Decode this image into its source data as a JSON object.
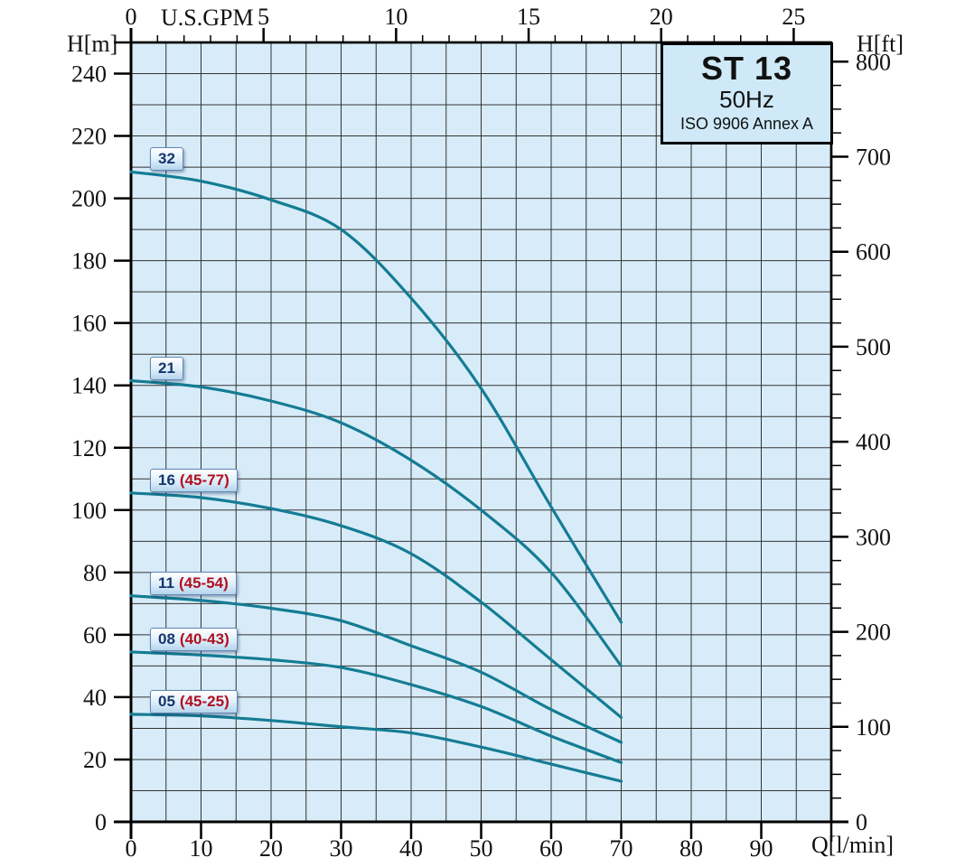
{
  "title_box": {
    "model": "ST 13",
    "frequency": "50Hz",
    "standard": "ISO 9906 Annex A"
  },
  "axis_labels": {
    "left": "H[m]",
    "right": "H[ft]",
    "top": "U.S.GPM",
    "bottom": "Q[l/min]"
  },
  "colors": {
    "plot_bg": "#d7ecf8",
    "curve": "#147c94",
    "grid": "#333333",
    "axis": "#000000",
    "title_box_bg": "#cfe9f8",
    "chip_number": "#16356b",
    "chip_range": "#b01020"
  },
  "chart_data": {
    "type": "line",
    "title": "ST 13 50Hz pump performance curves (head vs flow), ISO 9906 Annex A",
    "xlabel": "Q[l/min]",
    "x2label": "U.S.GPM",
    "ylabel": "H[m]",
    "y2label": "H[ft]",
    "xlim": [
      0,
      100
    ],
    "ylim": [
      0,
      250
    ],
    "x_ticks": [
      0,
      10,
      20,
      30,
      40,
      50,
      60,
      70,
      80,
      90
    ],
    "x2_ticks": [
      0,
      5,
      10,
      15,
      20,
      25
    ],
    "y_ticks": [
      0,
      20,
      40,
      60,
      80,
      100,
      120,
      140,
      160,
      180,
      200,
      220,
      240
    ],
    "y2_ticks": [
      0,
      100,
      200,
      300,
      400,
      500,
      600,
      700,
      800
    ],
    "x2_minor_step": 1,
    "y2_minor_step": 25,
    "grid": {
      "on": true,
      "x_step": 5,
      "y_step": 10
    },
    "legend_position": "on-curve-chips",
    "x": [
      0,
      10,
      20,
      30,
      40,
      50,
      60,
      70
    ],
    "series": [
      {
        "name": "32",
        "range": "",
        "values": [
          208.5,
          205.5,
          199.5,
          190.0,
          168.0,
          139.0,
          101.0,
          64.0
        ]
      },
      {
        "name": "21",
        "range": "",
        "values": [
          141.5,
          139.5,
          135.0,
          128.0,
          116.0,
          100.0,
          80.0,
          50.0
        ]
      },
      {
        "name": "16",
        "range": "(45-77)",
        "values": [
          105.5,
          104.0,
          100.5,
          95.0,
          86.0,
          70.5,
          52.0,
          33.5
        ]
      },
      {
        "name": "11",
        "range": "(45-54)",
        "values": [
          72.5,
          71.0,
          68.5,
          64.5,
          56.5,
          48.0,
          36.0,
          25.5
        ]
      },
      {
        "name": "08",
        "range": "(40-43)",
        "values": [
          54.5,
          53.5,
          52.0,
          49.5,
          44.0,
          37.0,
          27.5,
          19.0
        ]
      },
      {
        "name": "05",
        "range": "(45-25)",
        "values": [
          34.5,
          34.0,
          32.5,
          30.5,
          28.5,
          24.0,
          18.5,
          13.0
        ]
      }
    ]
  }
}
